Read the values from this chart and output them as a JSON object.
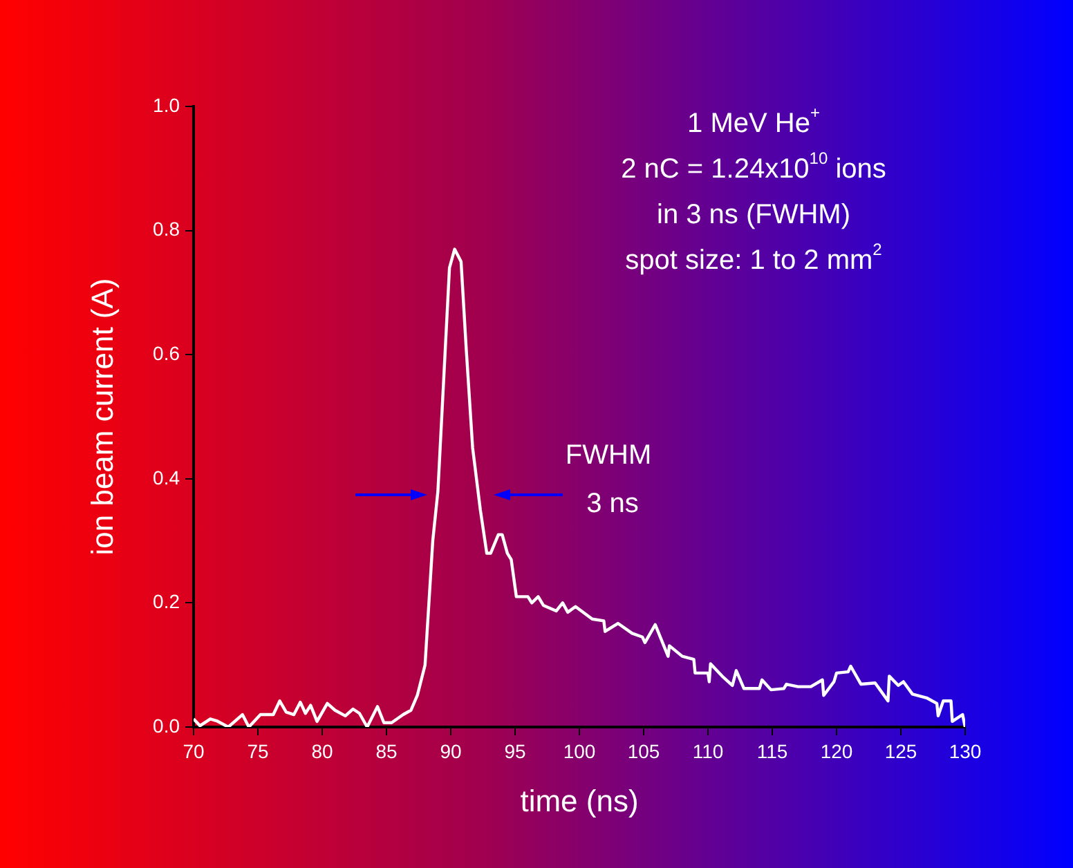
{
  "chart_data": {
    "type": "line",
    "xlabel": "time (ns)",
    "ylabel": "ion beam current (A)",
    "xlim": [
      70,
      130
    ],
    "xticks": [
      70,
      75,
      80,
      85,
      90,
      95,
      100,
      105,
      110,
      115,
      120,
      125,
      130
    ],
    "ylim": [
      0,
      1
    ],
    "yticks": [
      {
        "value": 0,
        "label": "0.0"
      },
      {
        "value": 0.2,
        "label": "0.2"
      },
      {
        "value": 0.4,
        "label": "0.4"
      },
      {
        "value": 0.6,
        "label": "0.6"
      },
      {
        "value": 0.8,
        "label": "0.8"
      },
      {
        "value": 1,
        "label": "1.0"
      }
    ],
    "grid": false,
    "legend": false,
    "marker": "none",
    "line_style": "solid",
    "series": [
      {
        "color": "#ffffff",
        "x": [
          70,
          70.5,
          71.3,
          71.8,
          72.7,
          73.8,
          74.3,
          75.2,
          76.2,
          76.7,
          77.2,
          77.8,
          78.3,
          78.7,
          79.1,
          79.6,
          80.4,
          81.0,
          81.8,
          82.4,
          82.9,
          83.5,
          84.3,
          84.8,
          85.4,
          86.3,
          86.9,
          87.4,
          88.0,
          88.3,
          88.6,
          89.0,
          89.6,
          89.9,
          90.3,
          90.8,
          91.2,
          91.7,
          92.3,
          92.8,
          93.1,
          93.7,
          94.0,
          94.4,
          94.7,
          95.1,
          95.6,
          96.0,
          96.3,
          96.8,
          97.2,
          98.2,
          98.7,
          99.1,
          99.7,
          101.0,
          101.9,
          102.0,
          103.0,
          104.1,
          104.9,
          105.1,
          105.9,
          106.9,
          107.0,
          108.0,
          108.9,
          109.0,
          110.0,
          110.1,
          110.2,
          111.1,
          111.9,
          112.2,
          112.8,
          114.0,
          114.2,
          114.9,
          115.9,
          116.1,
          117.0,
          118.0,
          118.9,
          119.0,
          119.8,
          120.0,
          120.9,
          121.1,
          121.9,
          123.0,
          124.0,
          124.1,
          124.8,
          125.2,
          125.9,
          127.0,
          127.8,
          127.9,
          128.3,
          128.9,
          129.0,
          129.8,
          130
        ],
        "values": [
          0.013,
          0.002,
          0.013,
          0.01,
          0.0,
          0.02,
          0.0,
          0.02,
          0.02,
          0.042,
          0.024,
          0.02,
          0.04,
          0.022,
          0.035,
          0.009,
          0.038,
          0.027,
          0.018,
          0.029,
          0.022,
          0.0,
          0.033,
          0.007,
          0.007,
          0.02,
          0.027,
          0.051,
          0.1,
          0.2,
          0.3,
          0.38,
          0.62,
          0.74,
          0.77,
          0.75,
          0.61,
          0.45,
          0.35,
          0.28,
          0.28,
          0.31,
          0.31,
          0.28,
          0.27,
          0.21,
          0.21,
          0.21,
          0.2,
          0.21,
          0.196,
          0.187,
          0.2,
          0.185,
          0.194,
          0.174,
          0.171,
          0.154,
          0.167,
          0.151,
          0.145,
          0.136,
          0.165,
          0.114,
          0.131,
          0.114,
          0.109,
          0.087,
          0.087,
          0.073,
          0.102,
          0.082,
          0.067,
          0.091,
          0.062,
          0.062,
          0.076,
          0.06,
          0.062,
          0.069,
          0.065,
          0.065,
          0.076,
          0.051,
          0.073,
          0.087,
          0.089,
          0.098,
          0.069,
          0.071,
          0.042,
          0.082,
          0.067,
          0.073,
          0.053,
          0.047,
          0.038,
          0.018,
          0.042,
          0.042,
          0.009,
          0.02,
          0.0
        ]
      }
    ],
    "annotations": [
      "1 MeV He$^{+}$",
      "2 nC = 1.24x10$^{10}$ ions",
      "in 3 ns (FWHM)",
      "spot size: 1 to 2 mm$^{2}$",
      "FWHM",
      "3 ns"
    ]
  }
}
